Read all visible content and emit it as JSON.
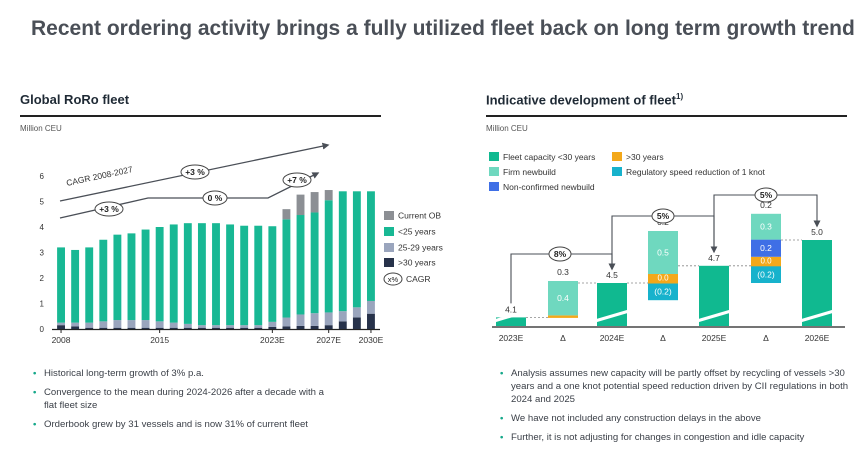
{
  "title": "Recent ordering activity brings a fully utilized fleet back on long term growth trend",
  "left": {
    "title": "Global RoRo fleet",
    "unit": "Million CEU",
    "bullets": [
      "Historical long-term growth of 3% p.a.",
      "Convergence to the mean during 2024-2026 after a decade with a flat fleet size",
      "Orderbook grew by 31 vessels  and is now 31% of current fleet"
    ]
  },
  "right": {
    "title": "Indicative development of fleet",
    "title_sup": "1)",
    "unit": "Million CEU",
    "bullets": [
      "Analysis assumes new capacity will be partly offset by recycling of vessels >30 years and a one knot potential speed reduction driven by CII regulations in both 2024 and 2025",
      "We have not included any construction delays in the above",
      "Further, it is not adjusting for changes in congestion and idle capacity"
    ]
  },
  "colors": {
    "current_ob": "#8c8f94",
    "lt25": "#18b894",
    "y25_29": "#9aa5bd",
    "gt30": "#27324a",
    "capacity": "#10b990",
    "firm_newbuild": "#6fd8bf",
    "gt30_orange": "#f3a81a",
    "speed": "#17b2cc",
    "nonconfirmed": "#3f6fe6",
    "arrow": "#4a4f57"
  },
  "chart_data": [
    {
      "type": "bar",
      "stacked": true,
      "title": "Global RoRo fleet",
      "ylabel": "Million CEU",
      "ylim": [
        0,
        6
      ],
      "yticks": [
        0,
        1,
        2,
        3,
        4,
        5,
        6
      ],
      "x": [
        2008,
        2009,
        2010,
        2011,
        2012,
        2013,
        2014,
        2015,
        2016,
        2017,
        2018,
        2019,
        2020,
        2021,
        2022,
        2023,
        2024,
        2025,
        2026,
        2027,
        2028,
        2029,
        2030
      ],
      "xtick_labels": [
        "2008",
        "2015",
        "2023E",
        "2027E",
        "2030E"
      ],
      "series": [
        {
          "name": ">30 years",
          "color_key": "gt30",
          "values": [
            0.15,
            0.1,
            0.05,
            0.05,
            0.05,
            0.05,
            0.05,
            0.05,
            0.05,
            0.05,
            0.05,
            0.05,
            0.05,
            0.05,
            0.05,
            0.08,
            0.1,
            0.12,
            0.12,
            0.15,
            0.3,
            0.45,
            0.6
          ]
        },
        {
          "name": "25-29 years",
          "color_key": "y25_29",
          "values": [
            0.1,
            0.15,
            0.2,
            0.25,
            0.3,
            0.3,
            0.3,
            0.25,
            0.2,
            0.15,
            0.1,
            0.1,
            0.1,
            0.1,
            0.1,
            0.2,
            0.35,
            0.45,
            0.5,
            0.5,
            0.4,
            0.4,
            0.5
          ]
        },
        {
          "name": "<25 years",
          "color_key": "lt25",
          "values": [
            2.95,
            2.85,
            2.95,
            3.2,
            3.35,
            3.4,
            3.55,
            3.7,
            3.85,
            3.95,
            4.0,
            4.0,
            3.95,
            3.9,
            3.9,
            3.75,
            3.85,
            3.9,
            3.95,
            4.4,
            4.7,
            4.55,
            4.3
          ]
        },
        {
          "name": "Current OB",
          "color_key": "current_ob",
          "values": [
            0,
            0,
            0,
            0,
            0,
            0,
            0,
            0,
            0,
            0,
            0,
            0,
            0,
            0,
            0,
            0,
            0.4,
            0.8,
            0.8,
            0.4,
            0,
            0,
            0
          ]
        }
      ],
      "legend": [
        "Current OB",
        "<25 years",
        "25-29 years",
        ">30 years"
      ],
      "cagr_legend_label": "x%",
      "cagr_legend_text": "CAGR",
      "annotations": {
        "cagr_label": "CAGR 2008-2027",
        "trend_long": "+3 %",
        "flat": "0 %",
        "recent": "+7 %",
        "early": "+3 %"
      }
    },
    {
      "type": "bar",
      "waterfall": true,
      "title": "Indicative development of fleet",
      "ylabel": "Million CEU",
      "categories": [
        "2023E",
        "Δ",
        "2024E",
        "Δ",
        "2025E",
        "Δ",
        "2026E"
      ],
      "totals": [
        4.1,
        4.5,
        4.7,
        5.0
      ],
      "total_labels": [
        "4.1",
        "4.5",
        "4.7",
        "5.0"
      ],
      "deltas": [
        {
          "firm_newbuild": 0.4,
          "gt30": 0.0,
          "speed": 0.0,
          "nonconfirmed": 0.0,
          "firm_label": "0.4",
          "top_label": "0.3"
        },
        {
          "firm_newbuild": 0.5,
          "gt30": 0.0,
          "speed": -0.2,
          "nonconfirmed": 0.0,
          "firm_label": "0.5",
          "gt30_label": "0.0",
          "speed_label": "(0.2)",
          "top_label": "0.2"
        },
        {
          "firm_newbuild": 0.3,
          "gt30": 0.0,
          "speed": -0.2,
          "nonconfirmed": 0.2,
          "firm_label": "0.3",
          "nonconfirmed_label": "0.2",
          "gt30_label": "0.0",
          "speed_label": "(0.2)",
          "top_label": "0.2"
        }
      ],
      "growth_labels": [
        "8%",
        "5%",
        "5%"
      ],
      "legend": [
        "Fleet capacity <30 years",
        ">30 years",
        "Firm newbuild",
        "Regulatory speed reduction of 1 knot",
        "Non-confirmed newbuild"
      ]
    }
  ]
}
